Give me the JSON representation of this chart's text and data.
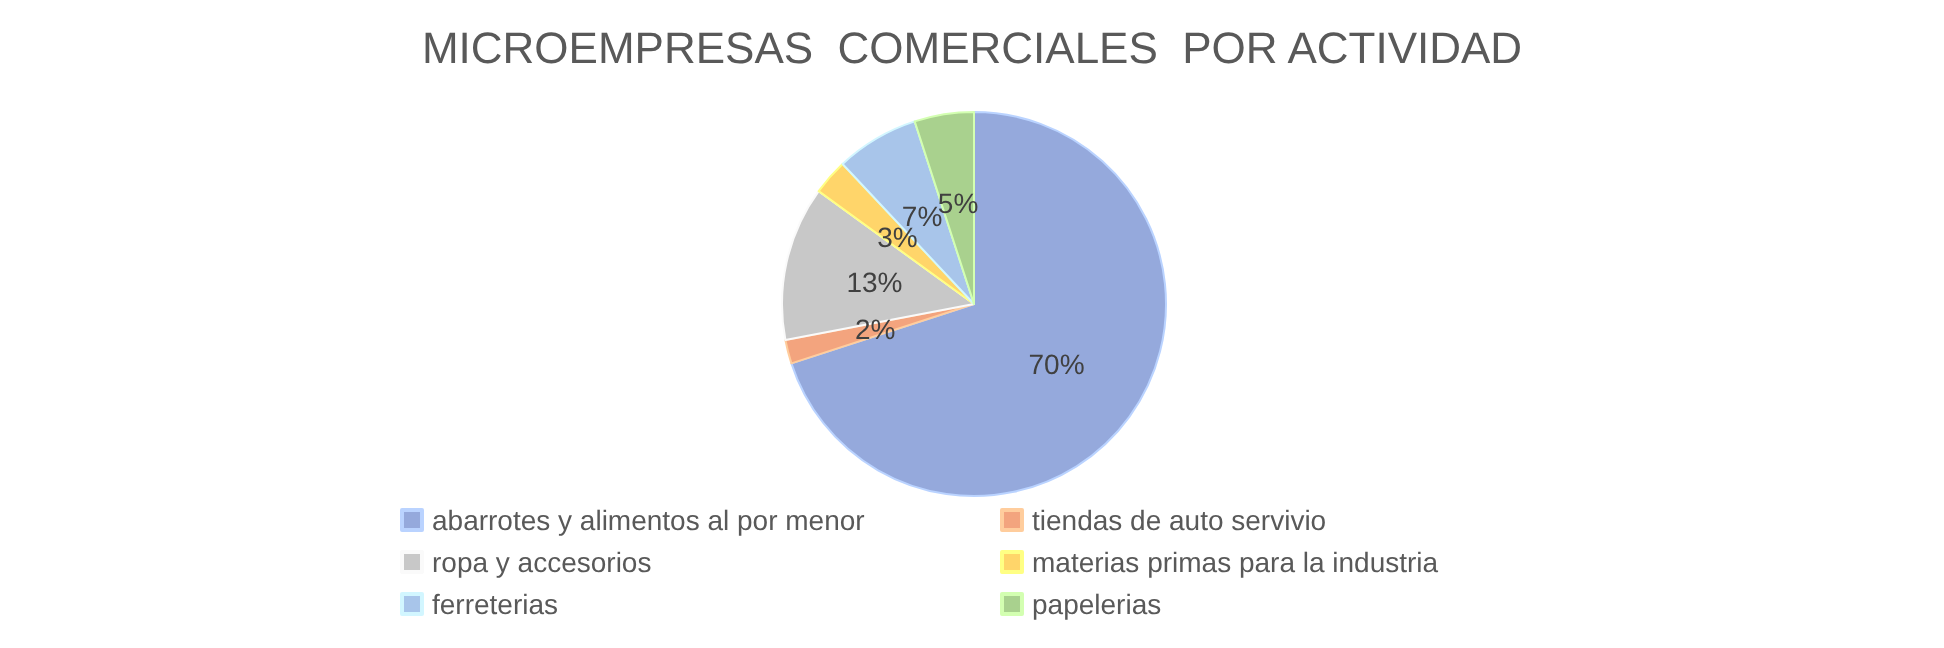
{
  "chart_data": {
    "type": "pie",
    "title": "MICROEMPRESAS  COMERCIALES  POR ACTIVIDAD",
    "categories": [
      "abarrotes y alimentos al por menor",
      "tiendas de auto servivio",
      "ropa y accesorios",
      "materias primas para la industria",
      "ferreterias",
      "papelerias"
    ],
    "values": [
      70,
      2,
      13,
      3,
      7,
      5
    ],
    "colors": [
      "#95a9dc",
      "#f3a47e",
      "#c8c8c8",
      "#ffd56a",
      "#a8c5ea",
      "#a9d18e"
    ],
    "value_labels": [
      "70%",
      "2%",
      "13%",
      "3%",
      "7%",
      "5%"
    ],
    "legend": "bottom"
  }
}
